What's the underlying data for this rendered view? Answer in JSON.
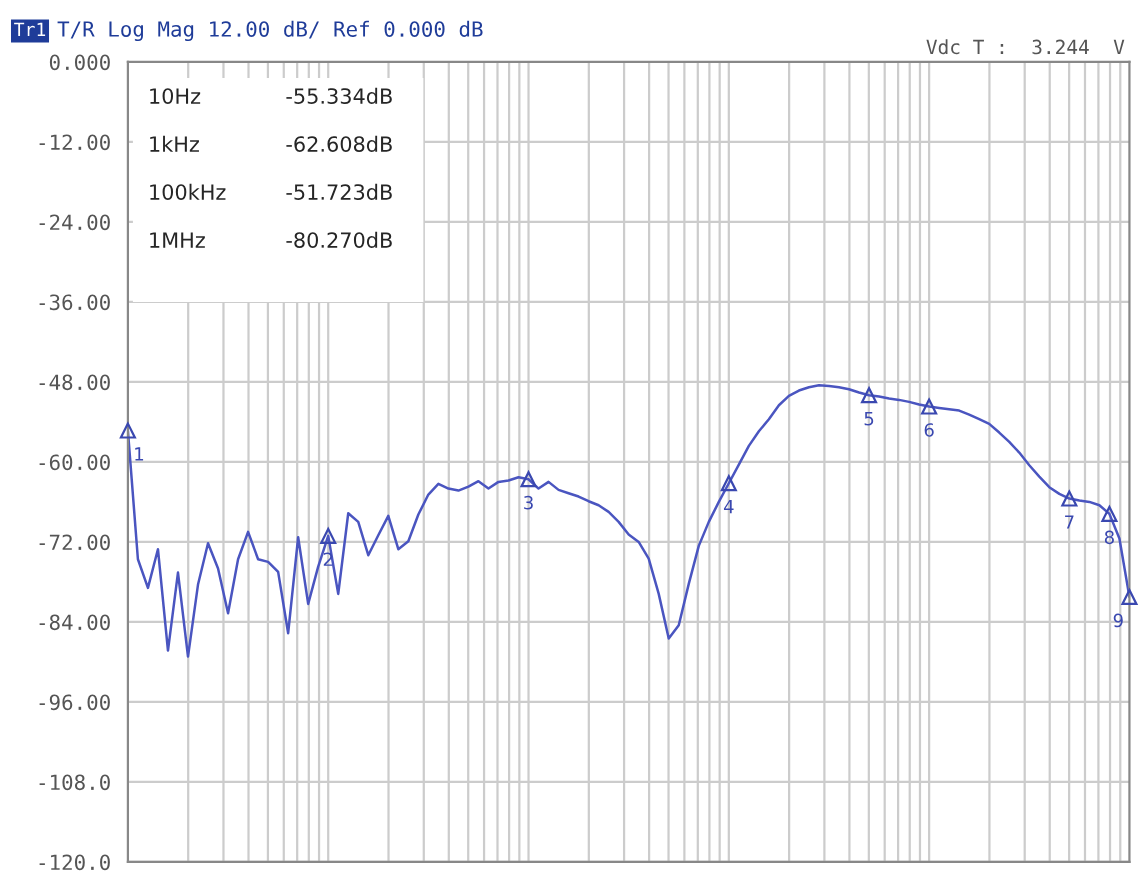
{
  "chart_data": {
    "type": "line",
    "title": "T/R Log Mag 12.00 dB/ Ref 0.000 dB",
    "categories": [
      null,
      null,
      null,
      null,
      null,
      null,
      null,
      null,
      null,
      null,
      null,
      null,
      null,
      null,
      null,
      null,
      null,
      null,
      null,
      null,
      null,
      null,
      null,
      null,
      null,
      null,
      null,
      null,
      null,
      null,
      null,
      null,
      null,
      null,
      null,
      null,
      null,
      null,
      null,
      null,
      null,
      null,
      null,
      null,
      null,
      null,
      null,
      null,
      null,
      null,
      null,
      null,
      null,
      null,
      null,
      null,
      null,
      null,
      null,
      null,
      null,
      null,
      null,
      null,
      null,
      null,
      null,
      null,
      null,
      null,
      null,
      null,
      null,
      null,
      null,
      null,
      null,
      null,
      null,
      null,
      null,
      null,
      null,
      null,
      null,
      null,
      null,
      null,
      null,
      null,
      null,
      null,
      null,
      null,
      null,
      null,
      null,
      null,
      null,
      null,
      null
    ],
    "series": [
      {
        "color": "#4a55c0",
        "values": [
          -55.3,
          -74.6,
          -78.9,
          -73.1,
          -88.3,
          -76.6,
          -89.2,
          -78.4,
          -72.2,
          -76.0,
          -82.7,
          -74.6,
          -70.5,
          -74.6,
          -75.0,
          -76.5,
          -85.7,
          -71.3,
          -81.3,
          -75.7,
          -71.1,
          -79.8,
          -67.7,
          -69.0,
          -74.0,
          -71.0,
          -68.1,
          -73.1,
          -71.9,
          -67.9,
          -64.9,
          -63.3,
          -64.0,
          -64.3,
          -63.7,
          -62.9,
          -64.0,
          -63.0,
          -62.8,
          -62.3,
          -62.6,
          -64.0,
          -63.0,
          -64.2,
          -64.7,
          -65.2,
          -65.9,
          -66.5,
          -67.5,
          -69.0,
          -70.9,
          -72.0,
          -74.5,
          -79.8,
          -86.5,
          -84.5,
          -78.3,
          -72.6,
          -69.0,
          -66.0,
          -63.2,
          -60.4,
          -57.6,
          -55.4,
          -53.6,
          -51.5,
          -50.1,
          -49.3,
          -48.8,
          -48.5,
          -48.6,
          -48.8,
          -49.1,
          -49.6,
          -50.0,
          -50.2,
          -50.5,
          -50.7,
          -51.0,
          -51.4,
          -51.7,
          -51.9,
          -52.1,
          -52.3,
          -52.9,
          -53.6,
          -54.3,
          -55.6,
          -57.0,
          -58.6,
          -60.5,
          -62.2,
          -63.8,
          -64.8,
          -65.5,
          -65.8,
          -66.0,
          -66.5,
          -67.8,
          -71.5,
          -80.27
        ]
      }
    ],
    "ylim": [
      -120,
      0
    ],
    "yticks": [
      {
        "value": 0,
        "label": "0.000"
      },
      {
        "value": -12,
        "label": "-12.00"
      },
      {
        "value": -24,
        "label": "-24.00"
      },
      {
        "value": -36,
        "label": "-36.00"
      },
      {
        "value": -48,
        "label": "-48.00"
      },
      {
        "value": -60,
        "label": "-60.00"
      },
      {
        "value": -72,
        "label": "-72.00"
      },
      {
        "value": -84,
        "label": "-84.00"
      },
      {
        "value": -96,
        "label": "-96.00"
      },
      {
        "value": -108,
        "label": "-108.0"
      },
      {
        "value": -120,
        "label": "-120.0"
      }
    ],
    "grid": true,
    "tick_labels": "y",
    "annotations": [
      "Tr1",
      "Vdc T :  3.244  V",
      "10Hz",
      "-55.334dB",
      "1kHz",
      "-62.608dB",
      "100kHz",
      "-51.723dB",
      "1MHz",
      "-80.270dB",
      {
        "text": "1",
        "y": -55.3
      },
      {
        "text": "2",
        "y": -71.1
      },
      {
        "text": "3",
        "y": -62.6
      },
      {
        "text": "4",
        "y": -63.2
      },
      {
        "text": "5",
        "y": -50.0
      },
      {
        "text": "6",
        "y": -51.7
      },
      {
        "text": "7",
        "y": -65.5
      },
      {
        "text": "8",
        "y": -67.8
      },
      {
        "text": "9",
        "y": -80.27
      }
    ]
  }
}
